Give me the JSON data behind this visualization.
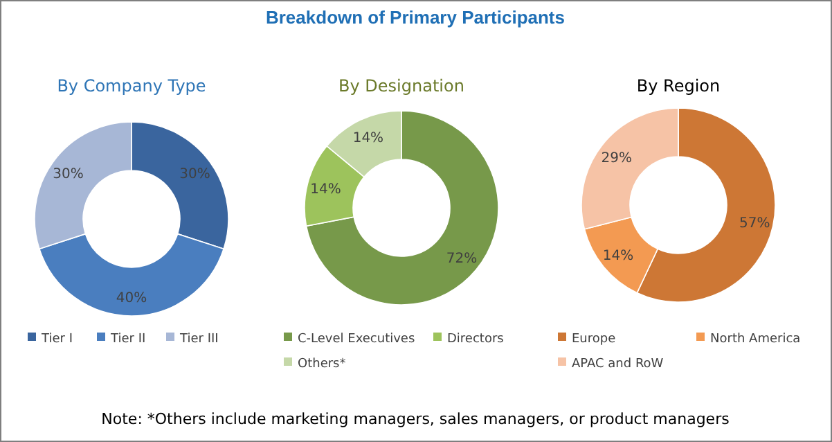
{
  "chart_data": [
    {
      "type": "donut",
      "title": "By Company Type",
      "categories": [
        "Tier I",
        "Tier II",
        "Tier III"
      ],
      "values": [
        30,
        40,
        30
      ],
      "colors": [
        "#3a659e",
        "#4a7ebf",
        "#a7b7d6"
      ],
      "value_labels": [
        "30%",
        "40%",
        "30%"
      ],
      "legend": "bottom",
      "annotations": [
        "Breakdown of Primary Participants"
      ]
    },
    {
      "type": "donut",
      "title": "By Designation",
      "categories": [
        "C-Level Executives",
        "Directors",
        "Others*"
      ],
      "values": [
        72,
        14,
        14
      ],
      "colors": [
        "#77994a",
        "#9dc35c",
        "#c5d8a8"
      ],
      "value_labels": [
        "72%",
        "14%",
        "14%"
      ],
      "legend": "bottom"
    },
    {
      "type": "donut",
      "title": "By Region",
      "categories": [
        "Europe",
        "North America",
        "APAC and RoW"
      ],
      "values": [
        57,
        14,
        29
      ],
      "colors": [
        "#cd7735",
        "#f39a52",
        "#f6c3a6"
      ],
      "value_labels": [
        "57%",
        "14%",
        "29%"
      ],
      "legend": "bottom",
      "annotations": [
        "Note: *Others include marketing managers, sales managers, or product managers"
      ]
    }
  ]
}
